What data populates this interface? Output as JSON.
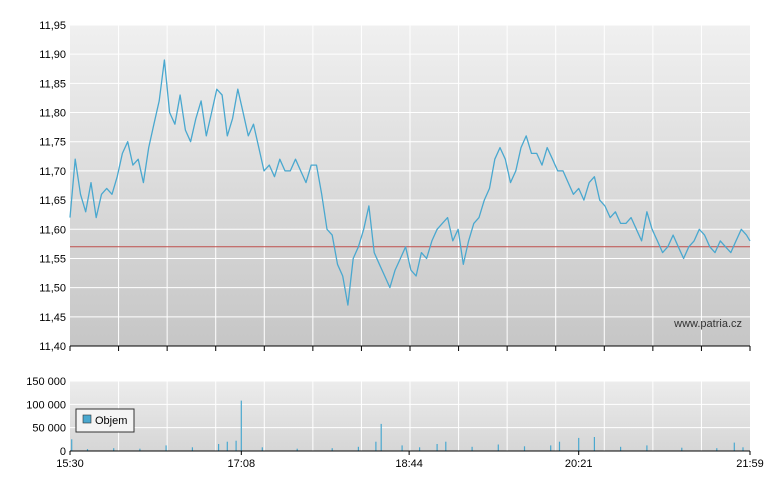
{
  "watermark": "www.patria.cz",
  "colors": {
    "price_line": "#4aa8cf",
    "reference_line": "#c0504d",
    "volume_bar": "#4aa8cf",
    "grid": "#ffffff",
    "plot_top": "#f0f0f0",
    "plot_bottom": "#c6c6c6"
  },
  "chart_data": [
    {
      "type": "line",
      "name": "price",
      "ylim": [
        11.4,
        11.95
      ],
      "y_ticks": [
        "11,95",
        "11,90",
        "11,85",
        "11,80",
        "11,75",
        "11,70",
        "11,65",
        "11,60",
        "11,55",
        "11,50",
        "11,45",
        "11,40"
      ],
      "reference_value": 11.57,
      "x_ticks": [
        "15:30",
        "17:08",
        "18:44",
        "20:21",
        "21:59"
      ],
      "xlim": [
        "15:30",
        "21:59"
      ],
      "grid": true,
      "x": [
        "15:30",
        "15:33",
        "15:36",
        "15:39",
        "15:42",
        "15:45",
        "15:48",
        "15:51",
        "15:54",
        "15:57",
        "16:00",
        "16:03",
        "16:06",
        "16:09",
        "16:12",
        "16:15",
        "16:18",
        "16:21",
        "16:24",
        "16:27",
        "16:30",
        "16:33",
        "16:36",
        "16:39",
        "16:42",
        "16:45",
        "16:48",
        "16:51",
        "16:54",
        "16:57",
        "17:00",
        "17:03",
        "17:06",
        "17:09",
        "17:12",
        "17:15",
        "17:18",
        "17:21",
        "17:24",
        "17:27",
        "17:30",
        "17:33",
        "17:36",
        "17:39",
        "17:42",
        "17:45",
        "17:48",
        "17:51",
        "17:54",
        "17:57",
        "18:00",
        "18:03",
        "18:06",
        "18:09",
        "18:12",
        "18:15",
        "18:18",
        "18:21",
        "18:24",
        "18:27",
        "18:30",
        "18:33",
        "18:36",
        "18:39",
        "18:42",
        "18:45",
        "18:48",
        "18:51",
        "18:54",
        "18:57",
        "19:00",
        "19:03",
        "19:06",
        "19:09",
        "19:12",
        "19:15",
        "19:18",
        "19:21",
        "19:24",
        "19:27",
        "19:30",
        "19:33",
        "19:36",
        "19:39",
        "19:42",
        "19:45",
        "19:48",
        "19:51",
        "19:54",
        "19:57",
        "20:00",
        "20:03",
        "20:06",
        "20:09",
        "20:12",
        "20:15",
        "20:18",
        "20:21",
        "20:24",
        "20:27",
        "20:30",
        "20:33",
        "20:36",
        "20:39",
        "20:42",
        "20:45",
        "20:48",
        "20:51",
        "20:54",
        "20:57",
        "21:00",
        "21:03",
        "21:06",
        "21:09",
        "21:12",
        "21:15",
        "21:18",
        "21:21",
        "21:24",
        "21:27",
        "21:30",
        "21:33",
        "21:36",
        "21:39",
        "21:42",
        "21:45",
        "21:48",
        "21:51",
        "21:54",
        "21:57",
        "21:59"
      ],
      "values": [
        11.62,
        11.72,
        11.66,
        11.63,
        11.68,
        11.62,
        11.66,
        11.67,
        11.66,
        11.69,
        11.73,
        11.75,
        11.71,
        11.72,
        11.68,
        11.74,
        11.78,
        11.82,
        11.89,
        11.8,
        11.78,
        11.83,
        11.77,
        11.75,
        11.79,
        11.82,
        11.76,
        11.8,
        11.84,
        11.83,
        11.76,
        11.79,
        11.84,
        11.8,
        11.76,
        11.78,
        11.74,
        11.7,
        11.71,
        11.69,
        11.72,
        11.7,
        11.7,
        11.72,
        11.7,
        11.68,
        11.71,
        11.71,
        11.66,
        11.6,
        11.59,
        11.54,
        11.52,
        11.47,
        11.55,
        11.57,
        11.6,
        11.64,
        11.56,
        11.54,
        11.52,
        11.5,
        11.53,
        11.55,
        11.57,
        11.53,
        11.52,
        11.56,
        11.55,
        11.58,
        11.6,
        11.61,
        11.62,
        11.58,
        11.6,
        11.54,
        11.58,
        11.61,
        11.62,
        11.65,
        11.67,
        11.72,
        11.74,
        11.72,
        11.68,
        11.7,
        11.74,
        11.76,
        11.73,
        11.73,
        11.71,
        11.74,
        11.72,
        11.7,
        11.7,
        11.68,
        11.66,
        11.67,
        11.65,
        11.68,
        11.69,
        11.65,
        11.64,
        11.62,
        11.63,
        11.61,
        11.61,
        11.62,
        11.6,
        11.58,
        11.63,
        11.6,
        11.58,
        11.56,
        11.57,
        11.59,
        11.57,
        11.55,
        11.57,
        11.58,
        11.6,
        11.59,
        11.57,
        11.56,
        11.58,
        11.57,
        11.56,
        11.58,
        11.6,
        11.59,
        11.58
      ]
    },
    {
      "type": "bar",
      "name": "volume",
      "ylim": [
        0,
        150000
      ],
      "y_ticks": [
        "150 000",
        "100 000",
        "50 000",
        "0"
      ],
      "x_ticks": [
        "15:30",
        "17:08",
        "18:44",
        "20:21",
        "21:59"
      ],
      "legend": [
        "Objem"
      ],
      "legend_position": "left",
      "grid": true,
      "x": [
        "15:31",
        "15:40",
        "15:55",
        "16:10",
        "16:25",
        "16:40",
        "16:55",
        "17:00",
        "17:05",
        "17:08",
        "17:20",
        "17:40",
        "18:00",
        "18:15",
        "18:25",
        "18:28",
        "18:40",
        "18:50",
        "19:00",
        "19:05",
        "19:20",
        "19:35",
        "19:50",
        "20:05",
        "20:10",
        "20:21",
        "20:30",
        "20:45",
        "21:00",
        "21:20",
        "21:40",
        "21:50",
        "21:55"
      ],
      "values": [
        25000,
        4000,
        6000,
        5000,
        12000,
        8000,
        15000,
        20000,
        22000,
        108000,
        8000,
        5000,
        6000,
        9000,
        20000,
        58000,
        12000,
        8000,
        15000,
        20000,
        9000,
        14000,
        10000,
        12000,
        20000,
        28000,
        30000,
        9000,
        12000,
        7000,
        6000,
        18000,
        8000
      ]
    }
  ]
}
